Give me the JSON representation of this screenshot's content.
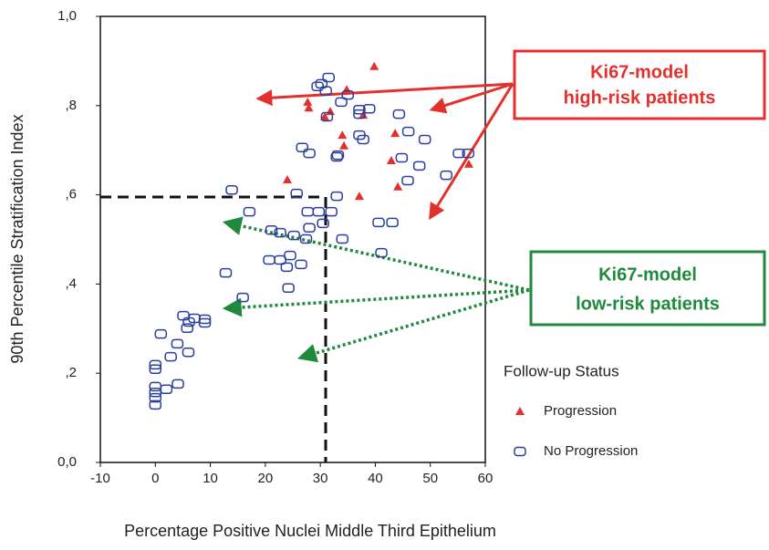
{
  "chart_data": {
    "type": "scatter",
    "x_label": "Percentage Positive Nuclei Middle Third Epithelium",
    "y_label": "90th Percentile Stratification Index",
    "xlim": [
      -10,
      60
    ],
    "xticks": [
      -10,
      0,
      10,
      20,
      30,
      40,
      50,
      60
    ],
    "ylim": [
      0,
      1
    ],
    "yticks": [
      {
        "value": 0,
        "label": "0,0"
      },
      {
        "value": 0.2,
        "label": ",2"
      },
      {
        "value": 0.4,
        "label": ",4"
      },
      {
        "value": 0.6,
        "label": ",6"
      },
      {
        "value": 0.8,
        "label": ",8"
      },
      {
        "value": 1,
        "label": "1,0"
      }
    ],
    "legend_title": "Follow-up Status",
    "series": [
      {
        "name": "Progression",
        "marker": "triangle",
        "color": "#e3302c",
        "x": [
          39.8,
          34.8,
          27.7,
          27.9,
          31.8,
          37.8,
          30.8,
          34.0,
          43.6,
          34.3,
          42.9,
          57.0,
          24.0,
          44.1,
          37.1
        ],
        "values": [
          0.888,
          0.836,
          0.808,
          0.795,
          0.787,
          0.779,
          0.775,
          0.734,
          0.738,
          0.71,
          0.677,
          0.669,
          0.634,
          0.618,
          0.597
        ]
      },
      {
        "name": "No Progression",
        "marker": "square",
        "color": "#2b3f9c",
        "x": [
          31.5,
          30.2,
          29.5,
          31.0,
          35.0,
          33.8,
          31.2,
          37.1,
          38.9,
          37.1,
          44.3,
          46.0,
          49.0,
          37.1,
          37.8,
          33.2,
          33.0,
          26.7,
          28.0,
          44.8,
          48.0,
          45.9,
          52.9,
          55.2,
          56.9,
          13.9,
          25.7,
          33.0,
          29.7,
          32.0,
          17.1,
          27.7,
          30.5,
          28.0,
          21.1,
          22.7,
          25.2,
          27.4,
          34.0,
          40.6,
          43.1,
          41.1,
          20.7,
          22.7,
          24.5,
          23.9,
          26.5,
          12.8,
          24.2,
          15.9,
          5.1,
          7.1,
          9.0,
          6.1,
          9.0,
          1.0,
          5.8,
          4.0,
          6.0,
          2.8,
          0,
          0,
          2.0,
          4.1,
          0,
          0,
          0,
          0
        ],
        "values": [
          0.863,
          0.849,
          0.843,
          0.833,
          0.824,
          0.808,
          0.775,
          0.791,
          0.793,
          0.781,
          0.781,
          0.742,
          0.724,
          0.734,
          0.724,
          0.689,
          0.685,
          0.706,
          0.693,
          0.683,
          0.665,
          0.632,
          0.644,
          0.693,
          0.693,
          0.611,
          0.603,
          0.597,
          0.562,
          0.562,
          0.562,
          0.562,
          0.536,
          0.526,
          0.521,
          0.515,
          0.509,
          0.501,
          0.501,
          0.538,
          0.538,
          0.47,
          0.454,
          0.454,
          0.464,
          0.438,
          0.444,
          0.425,
          0.391,
          0.37,
          0.329,
          0.323,
          0.321,
          0.315,
          0.313,
          0.288,
          0.301,
          0.266,
          0.247,
          0.237,
          0.219,
          0.209,
          0.164,
          0.176,
          0.17,
          0.157,
          0.145,
          0.129
        ]
      }
    ],
    "annotations": [
      {
        "lines": [
          "Ki67-model",
          "high-risk patients"
        ],
        "color": "#e3302c"
      },
      {
        "lines": [
          "Ki67-model",
          "low-risk patients"
        ],
        "color": "#1f8a3c"
      }
    ]
  }
}
